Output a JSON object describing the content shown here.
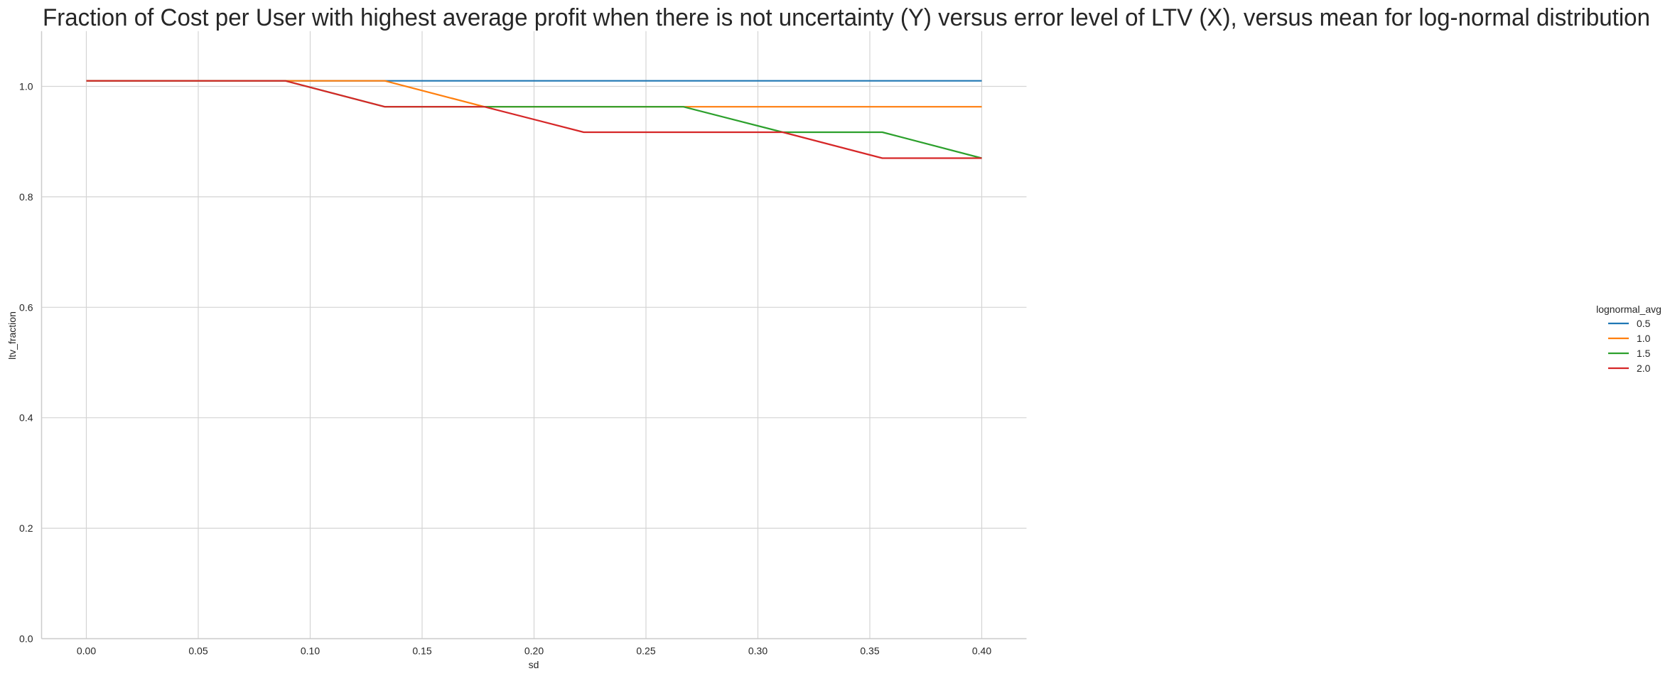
{
  "chart_data": {
    "type": "line",
    "title": "Fraction of Cost per User with highest average profit when there is not uncertainty (Y) versus error level of LTV (X), versus mean for log-normal distribution",
    "xlabel": "sd",
    "ylabel": "ltv_fraction",
    "xlim": [
      -0.02,
      0.42
    ],
    "ylim": [
      0,
      1.1
    ],
    "grid": true,
    "xticks": [
      0.0,
      0.05,
      0.1,
      0.15,
      0.2,
      0.25,
      0.3,
      0.35,
      0.4
    ],
    "xtick_labels": [
      "0.00",
      "0.05",
      "0.10",
      "0.15",
      "0.20",
      "0.25",
      "0.30",
      "0.35",
      "0.40"
    ],
    "yticks": [
      0.0,
      0.2,
      0.4,
      0.6,
      0.8,
      1.0
    ],
    "ytick_labels": [
      "0.0",
      "0.2",
      "0.4",
      "0.6",
      "0.8",
      "1.0"
    ],
    "x": [
      0.0,
      0.0444,
      0.0889,
      0.1333,
      0.1778,
      0.2222,
      0.2667,
      0.3111,
      0.3556,
      0.4
    ],
    "legend_title": "lognormal_avg",
    "legend_placement": "right",
    "series": [
      {
        "name": "0.5",
        "color": "#1f77b4",
        "values": [
          1.01,
          1.01,
          1.01,
          1.01,
          1.01,
          1.01,
          1.01,
          1.01,
          1.01,
          1.01
        ]
      },
      {
        "name": "1.0",
        "color": "#ff7f0e",
        "values": [
          1.01,
          1.01,
          1.01,
          1.01,
          0.963,
          0.963,
          0.963,
          0.963,
          0.963,
          0.963
        ]
      },
      {
        "name": "1.5",
        "color": "#2ca02c",
        "values": [
          1.01,
          1.01,
          1.01,
          0.963,
          0.963,
          0.963,
          0.963,
          0.917,
          0.917,
          0.87
        ]
      },
      {
        "name": "2.0",
        "color": "#d62728",
        "values": [
          1.01,
          1.01,
          1.01,
          0.963,
          0.963,
          0.917,
          0.917,
          0.917,
          0.87,
          0.87
        ]
      }
    ]
  }
}
